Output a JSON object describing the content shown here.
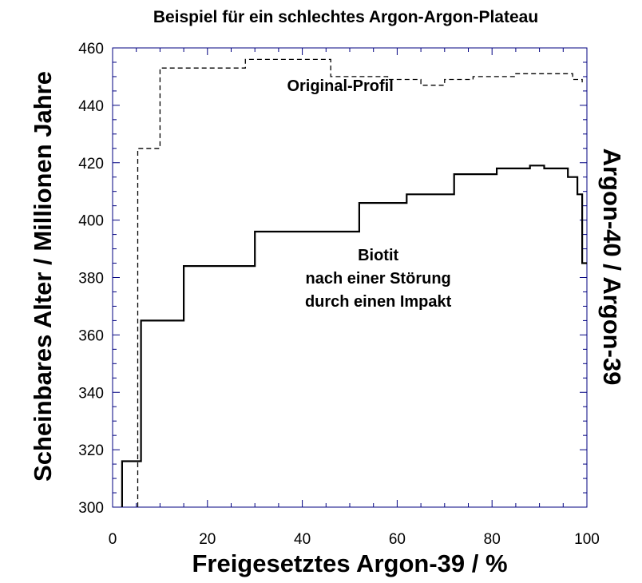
{
  "chart_data": {
    "type": "line",
    "title": "Beispiel für ein schlechtes Argon-Argon-Plateau",
    "xlabel": "Freigesetztes Argon-39 / %",
    "ylabel": "Scheinbares Alter / Millionen Jahre",
    "ylabel_right": "Argon-40 / Argon-39",
    "xlim": [
      0,
      100
    ],
    "ylim": [
      300,
      460
    ],
    "xticks": [
      0,
      20,
      40,
      60,
      80,
      100
    ],
    "yticks": [
      300,
      320,
      340,
      360,
      380,
      400,
      420,
      440,
      460
    ],
    "x_tick_labels": [
      "0",
      "20",
      "40",
      "60",
      "80",
      "100"
    ],
    "y_tick_labels": [
      "300",
      "320",
      "340",
      "360",
      "380",
      "400",
      "420",
      "440",
      "460"
    ],
    "grid": false,
    "frame_color": "#000080",
    "annotations": [
      {
        "id": "original",
        "lines": [
          "Original-Profil"
        ],
        "at": [
          48,
          445
        ]
      },
      {
        "id": "biotit",
        "lines": [
          "Biotit",
          "nach einer Störung",
          "durch einen Impakt"
        ],
        "at": [
          56,
          386
        ]
      }
    ],
    "series": [
      {
        "style": "dashed",
        "x": [
          5.3,
          5.3,
          10,
          10,
          28,
          28,
          46,
          46,
          58,
          58,
          65,
          65,
          70,
          70,
          76,
          76,
          85,
          85,
          97,
          97,
          99,
          99
        ],
        "y": [
          300,
          425,
          425,
          453,
          453,
          456,
          456,
          450,
          450,
          449,
          449,
          447,
          447,
          449,
          449,
          450,
          450,
          451,
          451,
          449,
          449,
          448
        ]
      },
      {
        "style": "solid",
        "x": [
          2,
          2,
          6,
          6,
          15,
          15,
          30,
          30,
          52,
          52,
          62,
          62,
          72,
          72,
          81,
          81,
          88,
          88,
          91,
          91,
          96,
          96,
          98,
          98,
          99,
          99,
          100
        ],
        "y": [
          300,
          316,
          316,
          365,
          365,
          384,
          384,
          396,
          396,
          406,
          406,
          409,
          409,
          416,
          416,
          418,
          418,
          419,
          419,
          418,
          418,
          415,
          415,
          409,
          409,
          385,
          385
        ]
      }
    ]
  }
}
